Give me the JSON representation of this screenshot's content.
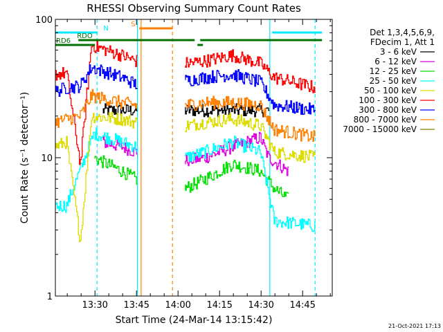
{
  "chart_data": {
    "type": "line",
    "title": "RHESSI Observing Summary Count Rates",
    "xlabel": "Start Time (24-Mar-14 13:15:42)",
    "ylabel": "Count Rate (s⁻¹ detector⁻¹)",
    "y_scale": "log",
    "ylim": [
      1,
      100
    ],
    "xlim": [
      "13:15:42",
      "14:55:42"
    ],
    "x_tick_labels": [
      "13:30",
      "13:45",
      "14:00",
      "14:15",
      "14:30",
      "14:45"
    ],
    "y_tick_labels": [
      "1",
      "10",
      "100"
    ],
    "legend_header": [
      "Det 1,3,4,5,6,9,",
      "FDecim 1, Att 1"
    ],
    "legend_position": "right",
    "footer": "21-Oct-2021 17:13",
    "series": [
      {
        "name": "3 - 6 keV",
        "color": "#000000",
        "points": [
          [
            "13:33",
            22
          ],
          [
            "13:40",
            22
          ],
          [
            "13:45",
            22
          ],
          [
            "14:03",
            22
          ],
          [
            "14:10",
            22
          ],
          [
            "14:20",
            22
          ],
          [
            "14:33",
            22
          ]
        ]
      },
      {
        "name": "6 - 12 keV",
        "color": "#e000e0",
        "points": [
          [
            "13:33",
            13
          ],
          [
            "13:40",
            12
          ],
          [
            "13:45",
            11
          ],
          [
            "14:03",
            9.5
          ],
          [
            "14:10",
            10
          ],
          [
            "14:20",
            12
          ],
          [
            "14:30",
            14
          ],
          [
            "14:33",
            10
          ],
          [
            "14:40",
            8
          ]
        ]
      },
      {
        "name": "12 - 25 keV",
        "color": "#00e000",
        "points": [
          [
            "13:30",
            10
          ],
          [
            "13:40",
            8
          ],
          [
            "13:45",
            7
          ],
          [
            "14:03",
            6
          ],
          [
            "14:10",
            7
          ],
          [
            "14:20",
            9
          ],
          [
            "14:30",
            8
          ],
          [
            "14:35",
            6
          ],
          [
            "14:40",
            5
          ]
        ]
      },
      {
        "name": "25 - 50 keV",
        "color": "#00ffff",
        "points": [
          [
            "13:15:42",
            4.5
          ],
          [
            "13:20",
            4.5
          ],
          [
            "13:30",
            15
          ],
          [
            "13:40",
            13
          ],
          [
            "13:45",
            12
          ],
          [
            "14:03",
            10
          ],
          [
            "14:10",
            11
          ],
          [
            "14:20",
            13
          ],
          [
            "14:30",
            11
          ],
          [
            "14:35",
            3.5
          ],
          [
            "14:50",
            3.2
          ]
        ]
      },
      {
        "name": "50 - 100 keV",
        "color": "#dcdc00",
        "points": [
          [
            "13:15:42",
            12
          ],
          [
            "13:20",
            13
          ],
          [
            "13:25",
            2.5
          ],
          [
            "13:29",
            20
          ],
          [
            "13:40",
            19
          ],
          [
            "13:45",
            18
          ],
          [
            "14:03",
            17
          ],
          [
            "14:10",
            18
          ],
          [
            "14:20",
            19
          ],
          [
            "14:30",
            17
          ],
          [
            "14:35",
            11
          ],
          [
            "14:50",
            10
          ]
        ]
      },
      {
        "name": "100 - 300 keV",
        "color": "#ff0000",
        "points": [
          [
            "13:15:42",
            40
          ],
          [
            "13:20",
            41
          ],
          [
            "13:25",
            9
          ],
          [
            "13:29",
            65
          ],
          [
            "13:40",
            55
          ],
          [
            "13:45",
            50
          ],
          [
            "14:03",
            48
          ],
          [
            "14:10",
            50
          ],
          [
            "14:20",
            55
          ],
          [
            "14:30",
            48
          ],
          [
            "14:35",
            38
          ],
          [
            "14:50",
            32
          ]
        ]
      },
      {
        "name": "300 - 800 keV",
        "color": "#0000ff",
        "points": [
          [
            "13:15:42",
            30
          ],
          [
            "13:20",
            32
          ],
          [
            "13:25",
            33
          ],
          [
            "13:29",
            45
          ],
          [
            "13:40",
            38
          ],
          [
            "13:45",
            34
          ],
          [
            "14:03",
            36
          ],
          [
            "14:10",
            38
          ],
          [
            "14:20",
            40
          ],
          [
            "14:30",
            35
          ],
          [
            "14:35",
            24
          ],
          [
            "14:50",
            22
          ]
        ]
      },
      {
        "name": "800 - 7000 keV",
        "color": "#ff8000",
        "points": [
          [
            "13:15:42",
            18
          ],
          [
            "13:20",
            19
          ],
          [
            "13:25",
            20
          ],
          [
            "13:29",
            28
          ],
          [
            "13:40",
            25
          ],
          [
            "13:45",
            24
          ],
          [
            "14:03",
            24
          ],
          [
            "14:10",
            25
          ],
          [
            "14:20",
            25
          ],
          [
            "14:30",
            24
          ],
          [
            "14:35",
            16
          ],
          [
            "14:50",
            14
          ]
        ]
      },
      {
        "name": "7000 - 15000 keV",
        "color": "#808000",
        "points": []
      }
    ],
    "flag_bars": [
      {
        "label": "N",
        "color": "#00e8ff",
        "segments": [
          [
            "13:15:42",
            "13:31"
          ],
          [
            "14:34",
            "14:52"
          ]
        ]
      },
      {
        "label": "RDO",
        "color": "#007000",
        "segments": [
          [
            "13:24",
            "14:06"
          ],
          [
            "14:08",
            "14:52"
          ]
        ]
      },
      {
        "label": "RD6",
        "color": "#007000",
        "segments": [
          [
            "13:15:42",
            "13:30"
          ],
          [
            "14:07",
            "14:09"
          ]
        ]
      },
      {
        "label": "S",
        "color": "#ff8000",
        "segments": [
          [
            "13:46",
            "13:58"
          ]
        ]
      }
    ],
    "vertical_lines": [
      {
        "time": "13:30:45",
        "color": "#00e8ff",
        "style": "dashed"
      },
      {
        "time": "13:45:20",
        "color": "#00e8ff",
        "style": "solid"
      },
      {
        "time": "13:46:40",
        "color": "#ff8000",
        "style": "solid"
      },
      {
        "time": "13:58:00",
        "color": "#ff8000",
        "style": "dashed"
      },
      {
        "time": "14:33:10",
        "color": "#00e8ff",
        "style": "solid"
      },
      {
        "time": "14:49:30",
        "color": "#00e8ff",
        "style": "dashed"
      }
    ],
    "data_gaps": [
      [
        "13:45:30",
        "14:02:40"
      ]
    ]
  }
}
